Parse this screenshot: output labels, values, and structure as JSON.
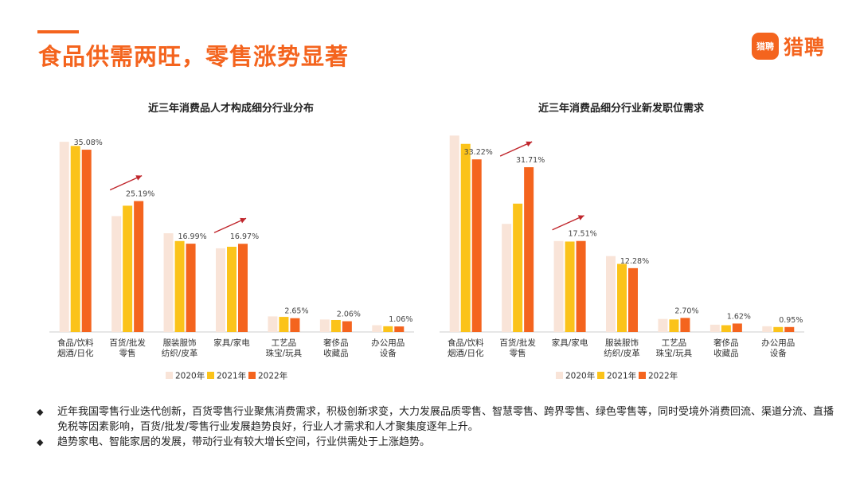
{
  "page": {
    "title": "食品供需两旺，零售涨势显著",
    "logo_badge": "猎聘",
    "logo_text": "猎聘",
    "accent_color": "#f4641e"
  },
  "legend_labels": [
    "2020年",
    "2021年",
    "2022年"
  ],
  "series_colors": [
    "#f9e4d8",
    "#fbc31a",
    "#f4641e"
  ],
  "arrow_color": "#c0262c",
  "chart_data": [
    {
      "type": "bar",
      "title": "近三年消费品人才构成细分行业分布",
      "categories": [
        [
          "食品/饮料",
          "烟酒/日化"
        ],
        [
          "百货/批发",
          "零售"
        ],
        [
          "服装服饰",
          "纺织/皮革"
        ],
        [
          "家具/家电"
        ],
        [
          "工艺品",
          "珠宝/玩具"
        ],
        [
          "奢侈品",
          "收藏品"
        ],
        [
          "办公用品",
          "设备"
        ]
      ],
      "series": [
        {
          "name": "2020年",
          "values": [
            36.6,
            22.3,
            19.0,
            16.1,
            3.0,
            2.4,
            1.3
          ]
        },
        {
          "name": "2021年",
          "values": [
            35.8,
            24.3,
            17.5,
            16.4,
            2.9,
            2.3,
            1.1
          ]
        },
        {
          "name": "2022年",
          "values": [
            35.08,
            25.19,
            16.99,
            16.97,
            2.65,
            2.06,
            1.06
          ]
        }
      ],
      "data_labels": [
        "35.08%",
        "25.19%",
        "16.99%",
        "16.97%",
        "2.65%",
        "2.06%",
        "1.06%"
      ],
      "ylim": [
        0,
        38
      ],
      "trend_arrows": [
        1,
        3
      ],
      "legend": "bottom"
    },
    {
      "type": "bar",
      "title": "近三年消费品细分行业新发职位需求",
      "categories": [
        [
          "食品/饮料",
          "烟酒/日化"
        ],
        [
          "百货/批发",
          "零售"
        ],
        [
          "家具/家电"
        ],
        [
          "服装服饰",
          "纺织/皮革"
        ],
        [
          "工艺品",
          "珠宝/玩具"
        ],
        [
          "奢侈品",
          "收藏品"
        ],
        [
          "办公用品",
          "设备"
        ]
      ],
      "series": [
        {
          "name": "2020年",
          "values": [
            37.8,
            20.8,
            17.5,
            14.6,
            2.5,
            1.4,
            1.1
          ]
        },
        {
          "name": "2021年",
          "values": [
            36.2,
            24.7,
            17.4,
            13.1,
            2.4,
            1.3,
            0.95
          ]
        },
        {
          "name": "2022年",
          "values": [
            33.22,
            31.71,
            17.51,
            12.28,
            2.7,
            1.62,
            0.95
          ]
        }
      ],
      "data_labels": [
        "33.22%",
        "31.71%",
        "17.51%",
        "12.28%",
        "2.70%",
        "1.62%",
        "0.95%"
      ],
      "ylim": [
        0,
        38
      ],
      "trend_arrows": [
        1,
        2
      ],
      "legend": "bottom"
    }
  ],
  "bullets": [
    "近年我国零售行业迭代创新，百货零售行业聚焦消费需求，积极创新求变，大力发展品质零售、智慧零售、跨界零售、绿色零售等，同时受境外消费回流、渠道分流、直播免税等因素影响，百货/批发/零售行业发展趋势良好，行业人才需求和人才聚集度逐年上升。",
    "趋势家电、智能家居的发展，带动行业有较大增长空间，行业供需处于上涨趋势。"
  ],
  "bullet_symbol": "◆"
}
